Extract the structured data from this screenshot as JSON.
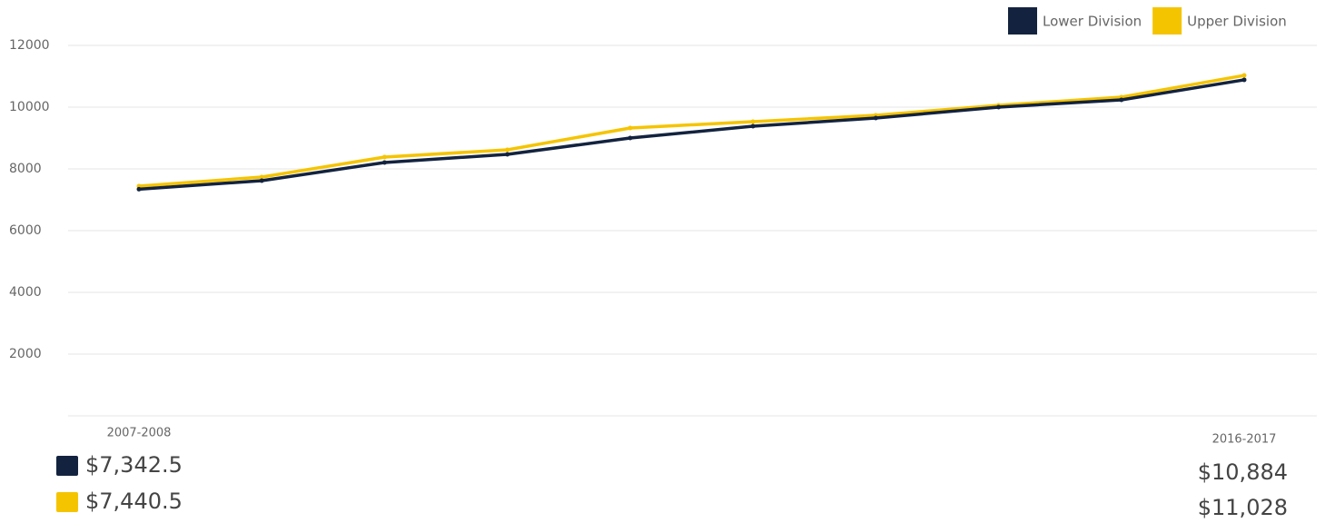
{
  "chart_data": {
    "type": "line",
    "categories": [
      "2007-2008",
      null,
      null,
      null,
      null,
      null,
      null,
      null,
      null,
      "2016-2017"
    ],
    "series": [
      {
        "name": "Lower Division",
        "color": "#13233f",
        "values": [
          7342.5,
          7618,
          8206,
          8471,
          9000,
          9382,
          9647,
          10000,
          10235,
          10884
        ],
        "value_labels": [
          "$7,342.5",
          null,
          null,
          null,
          null,
          null,
          null,
          null,
          null,
          "$10,884"
        ]
      },
      {
        "name": "Upper Division",
        "color": "#f5c400",
        "values": [
          7440.5,
          7735,
          8382,
          8618,
          9324,
          9529,
          9735,
          10059,
          10324,
          11028
        ],
        "value_labels": [
          "$7,440.5",
          null,
          null,
          null,
          null,
          null,
          null,
          null,
          null,
          "$11,028"
        ]
      }
    ],
    "ylim": [
      0,
      12000
    ],
    "yticks": [
      2000,
      4000,
      6000,
      8000,
      10000,
      12000
    ],
    "grid": true,
    "legend": "top-right"
  }
}
